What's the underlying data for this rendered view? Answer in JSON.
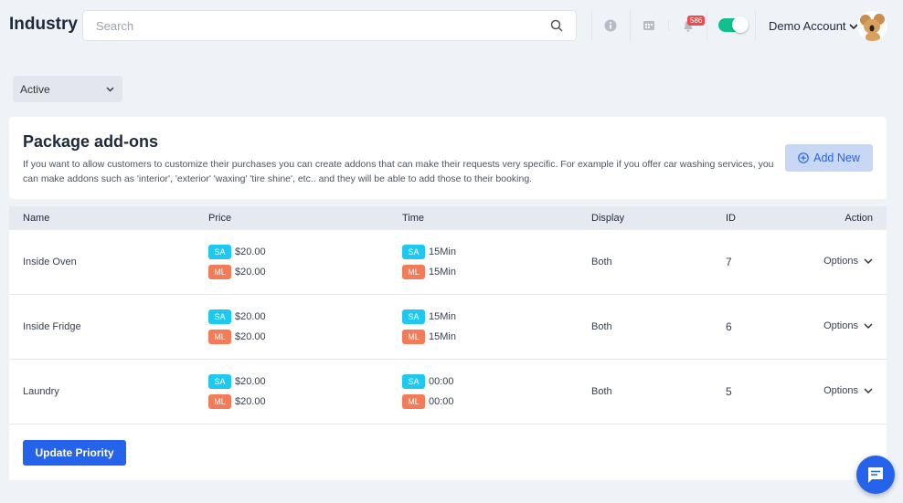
{
  "header": {
    "title": "Industry",
    "search_placeholder": "Search",
    "notification_count": "586",
    "account": "Demo Account",
    "toggle_on": true
  },
  "filter": {
    "selected": "Active"
  },
  "card": {
    "title": "Package add-ons",
    "description": "If you want to allow customers to customize their purchases you can create addons that can make their requests very specific. For example if you offer car washing services, you can make addons such as 'interior', 'exterior' 'waxing' 'tire shine', etc.. and they will be able to add those to their booking.",
    "add_label": "Add New"
  },
  "table": {
    "headers": [
      "Name",
      "Price",
      "Time",
      "Display",
      "ID",
      "Action"
    ],
    "rows": [
      {
        "name": "Inside Oven",
        "sa_price": "$20.00",
        "ml_price": "$20.00",
        "sa_time": "15Min",
        "ml_time": "15Min",
        "display": "Both",
        "id": "7",
        "action": "Options"
      },
      {
        "name": "Inside Fridge",
        "sa_price": "$20.00",
        "ml_price": "$20.00",
        "sa_time": "15Min",
        "ml_time": "15Min",
        "display": "Both",
        "id": "6",
        "action": "Options"
      },
      {
        "name": "Laundry",
        "sa_price": "$20.00",
        "ml_price": "$20.00",
        "sa_time": "00:00",
        "ml_time": "00:00",
        "display": "Both",
        "id": "5",
        "action": "Options"
      }
    ],
    "badges": {
      "sa": "SA",
      "ml": "ML"
    }
  },
  "footer": {
    "update_label": "Update Priority"
  },
  "colors": {
    "primary": "#2563eb",
    "sa": "#1ec8f0",
    "ml": "#f37b57",
    "toggle": "#10c08f"
  }
}
